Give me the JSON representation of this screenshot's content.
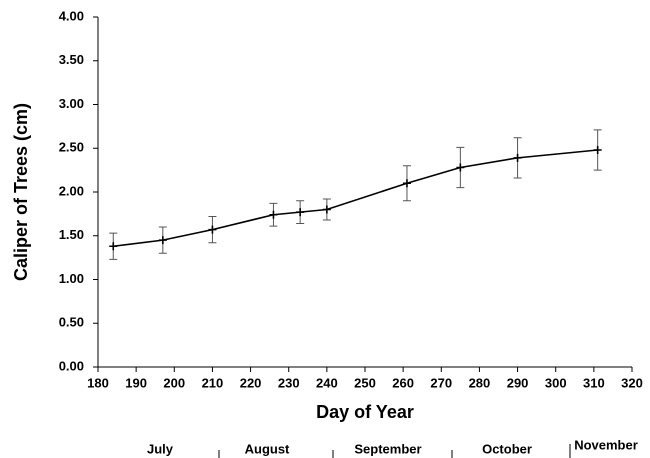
{
  "chart_data": {
    "type": "line",
    "x_label": "Day of Year",
    "y_label": "Caliper of Trees (cm)",
    "x": [
      184,
      197,
      210,
      226,
      233,
      240,
      261,
      275,
      290,
      311
    ],
    "values": [
      1.38,
      1.45,
      1.57,
      1.74,
      1.77,
      1.8,
      2.1,
      2.28,
      2.39,
      2.48
    ],
    "errors": [
      0.15,
      0.15,
      0.15,
      0.13,
      0.13,
      0.12,
      0.2,
      0.23,
      0.23,
      0.23
    ],
    "color": "#000000",
    "xlim": [
      180,
      320
    ],
    "xticks": [
      180,
      190,
      200,
      210,
      220,
      230,
      240,
      250,
      260,
      270,
      280,
      290,
      300,
      310,
      320
    ],
    "ylim": [
      0,
      4
    ],
    "yticks": [
      {
        "value": 0,
        "label": "0.00"
      },
      {
        "value": 0.5,
        "label": "0.50"
      },
      {
        "value": 1,
        "label": "1.00"
      },
      {
        "value": 1.5,
        "label": "1.50"
      },
      {
        "value": 2,
        "label": "2.00"
      },
      {
        "value": 2.5,
        "label": "2.50"
      },
      {
        "value": 3,
        "label": "3.00"
      },
      {
        "value": 3.5,
        "label": "3.50"
      },
      {
        "value": 4,
        "label": "4.00"
      }
    ],
    "months": [
      "July",
      "August",
      "September",
      "October",
      "November"
    ]
  }
}
